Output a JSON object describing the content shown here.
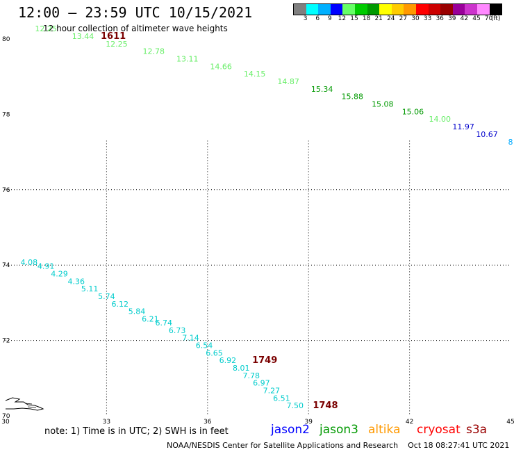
{
  "title": "12:00 – 23:59 UTC 10/15/2021",
  "subtitle": "12 hour collection of altimeter wave heights",
  "colorbar": {
    "unit": "(ft)",
    "ticks": [
      "3",
      "6",
      "9",
      "12",
      "15",
      "18",
      "21",
      "24",
      "27",
      "30",
      "33",
      "36",
      "39",
      "42",
      "45",
      "70"
    ],
    "colors": [
      "#808080",
      "#00ffff",
      "#00b0ff",
      "#0000ff",
      "#66ff66",
      "#00cc00",
      "#009900",
      "#ffff00",
      "#ffcc00",
      "#ff9900",
      "#ff0000",
      "#cc0000",
      "#990000",
      "#990099",
      "#cc33cc",
      "#ff88ff",
      "#000000"
    ]
  },
  "map": {
    "lon_ticks": [
      "30",
      "33",
      "36",
      "39",
      "42",
      "45"
    ],
    "lat_ticks": [
      "70",
      "72",
      "74",
      "76",
      "78",
      "80"
    ]
  },
  "tracks": [
    {
      "satellite": "cryosat",
      "color": "#66ee66",
      "points": [
        {
          "lon": 31.2,
          "lat": 80.2,
          "swh": "12.25"
        },
        {
          "lon": 32.3,
          "lat": 80.0,
          "swh": "13.44"
        },
        {
          "lon": 33.3,
          "lat": 79.8,
          "swh": "12.25"
        },
        {
          "lon": 34.4,
          "lat": 79.6,
          "swh": "12.78"
        },
        {
          "lon": 35.4,
          "lat": 79.4,
          "swh": "13.11"
        },
        {
          "lon": 36.4,
          "lat": 79.2,
          "swh": "14.66"
        },
        {
          "lon": 37.4,
          "lat": 79.0,
          "swh": "14.15"
        },
        {
          "lon": 38.4,
          "lat": 78.8,
          "swh": "14.87"
        }
      ]
    },
    {
      "satellite": "cryosat",
      "color": "#009900",
      "points": [
        {
          "lon": 39.4,
          "lat": 78.6,
          "swh": "15.34"
        },
        {
          "lon": 40.3,
          "lat": 78.4,
          "swh": "15.88"
        },
        {
          "lon": 41.2,
          "lat": 78.2,
          "swh": "15.08"
        },
        {
          "lon": 42.1,
          "lat": 78.0,
          "swh": "15.06"
        }
      ]
    },
    {
      "satellite": "cryosat",
      "color": "#66ee66",
      "points": [
        {
          "lon": 42.9,
          "lat": 77.8,
          "swh": "14.00"
        }
      ]
    },
    {
      "satellite": "cryosat",
      "color": "#0000cc",
      "points": [
        {
          "lon": 43.6,
          "lat": 77.6,
          "swh": "11.97"
        },
        {
          "lon": 44.3,
          "lat": 77.4,
          "swh": "10.67"
        }
      ]
    },
    {
      "satellite": "cryosat",
      "color": "#00aaff",
      "points": [
        {
          "lon": 45.0,
          "lat": 77.2,
          "swh": "8"
        }
      ]
    },
    {
      "satellite": "s3a",
      "color": "#00cccc",
      "points": [
        {
          "lon": 30.7,
          "lat": 74.0,
          "swh": "4.08"
        },
        {
          "lon": 31.2,
          "lat": 73.9,
          "swh": "4.91"
        },
        {
          "lon": 31.6,
          "lat": 73.7,
          "swh": "4.29"
        },
        {
          "lon": 32.1,
          "lat": 73.5,
          "swh": "4.36"
        },
        {
          "lon": 32.5,
          "lat": 73.3,
          "swh": "5.11"
        },
        {
          "lon": 33.0,
          "lat": 73.1,
          "swh": "5.74"
        },
        {
          "lon": 33.4,
          "lat": 72.9,
          "swh": "6.12"
        },
        {
          "lon": 33.9,
          "lat": 72.7,
          "swh": "5.84"
        },
        {
          "lon": 34.3,
          "lat": 72.5,
          "swh": "6.21"
        },
        {
          "lon": 34.7,
          "lat": 72.4,
          "swh": "6.74"
        },
        {
          "lon": 35.1,
          "lat": 72.2,
          "swh": "6.73"
        },
        {
          "lon": 35.5,
          "lat": 72.0,
          "swh": "7.14"
        },
        {
          "lon": 35.9,
          "lat": 71.8,
          "swh": "6.54"
        },
        {
          "lon": 36.2,
          "lat": 71.6,
          "swh": "6.65"
        },
        {
          "lon": 36.6,
          "lat": 71.4,
          "swh": "6.92"
        },
        {
          "lon": 37.0,
          "lat": 71.2,
          "swh": "8.01"
        },
        {
          "lon": 37.3,
          "lat": 71.0,
          "swh": "7.78"
        },
        {
          "lon": 37.6,
          "lat": 70.8,
          "swh": "6.97"
        },
        {
          "lon": 37.9,
          "lat": 70.6,
          "swh": "7.27"
        },
        {
          "lon": 38.2,
          "lat": 70.4,
          "swh": "6.51"
        },
        {
          "lon": 38.6,
          "lat": 70.2,
          "swh": "7.50"
        }
      ]
    }
  ],
  "time_labels": [
    {
      "text": "1611",
      "lon": 33.2,
      "lat": 80.0
    },
    {
      "text": "1749",
      "lon": 37.7,
      "lat": 71.4
    },
    {
      "text": "1748",
      "lon": 39.5,
      "lat": 70.2
    }
  ],
  "note": "note: 1) Time is in UTC; 2) SWH is in feet",
  "legend": [
    {
      "label": "jason2",
      "color": "#0000ff"
    },
    {
      "label": "jason3",
      "color": "#009900"
    },
    {
      "label": "altika",
      "color": "#ff9900"
    },
    {
      "label": "cryosat",
      "color": "#ff0000"
    },
    {
      "label": "s3a",
      "color": "#990000"
    }
  ],
  "footer": {
    "center": "NOAA/NESDIS Center for Satellite Applications and Research",
    "timestamp": "Oct 18 08:27:41 UTC 2021"
  }
}
